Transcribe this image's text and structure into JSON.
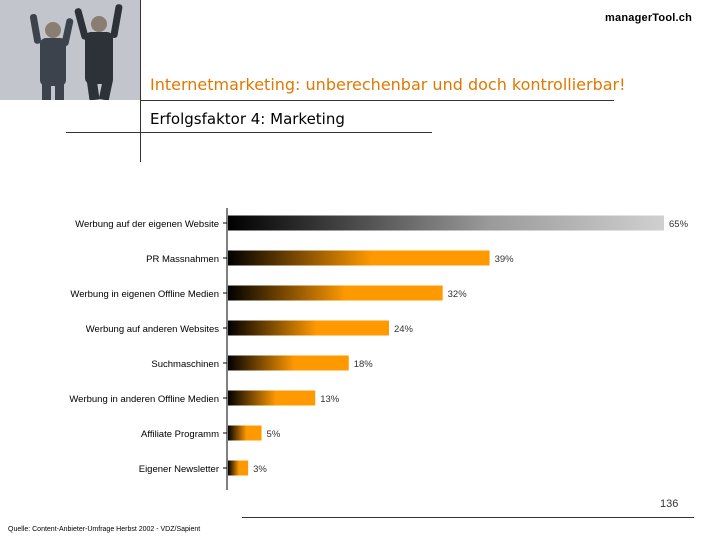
{
  "brand": "managerTool.ch",
  "header": {
    "title": "Internetmarketing: unberechenbar und doch kontrollierbar!",
    "subtitle": "Erfolgsfaktor 4: Marketing"
  },
  "footer": {
    "page": "136",
    "source": "Quelle: Content-Anbieter-Umfrage Herbst 2002 - VDZ/Sapient"
  },
  "colors": {
    "accent": "#ff9900",
    "title": "#e07800",
    "top_bar": "#bdbdbd"
  },
  "chart_data": {
    "type": "bar",
    "orientation": "horizontal",
    "categories": [
      "Werbung auf der eigenen Website",
      "PR Massnahmen",
      "Werbung in eigenen Offline Medien",
      "Werbung auf anderen Websites",
      "Suchmaschinen",
      "Werbung in anderen Offline Medien",
      "Affiliate Programm",
      "Eigener Newsletter"
    ],
    "values": [
      65,
      39,
      32,
      24,
      18,
      13,
      5,
      3
    ],
    "value_labels": [
      "65%",
      "39%",
      "32%",
      "24%",
      "18%",
      "13%",
      "5%",
      "3%"
    ],
    "xlim": [
      0,
      65
    ],
    "grid": false,
    "legend": "none"
  }
}
